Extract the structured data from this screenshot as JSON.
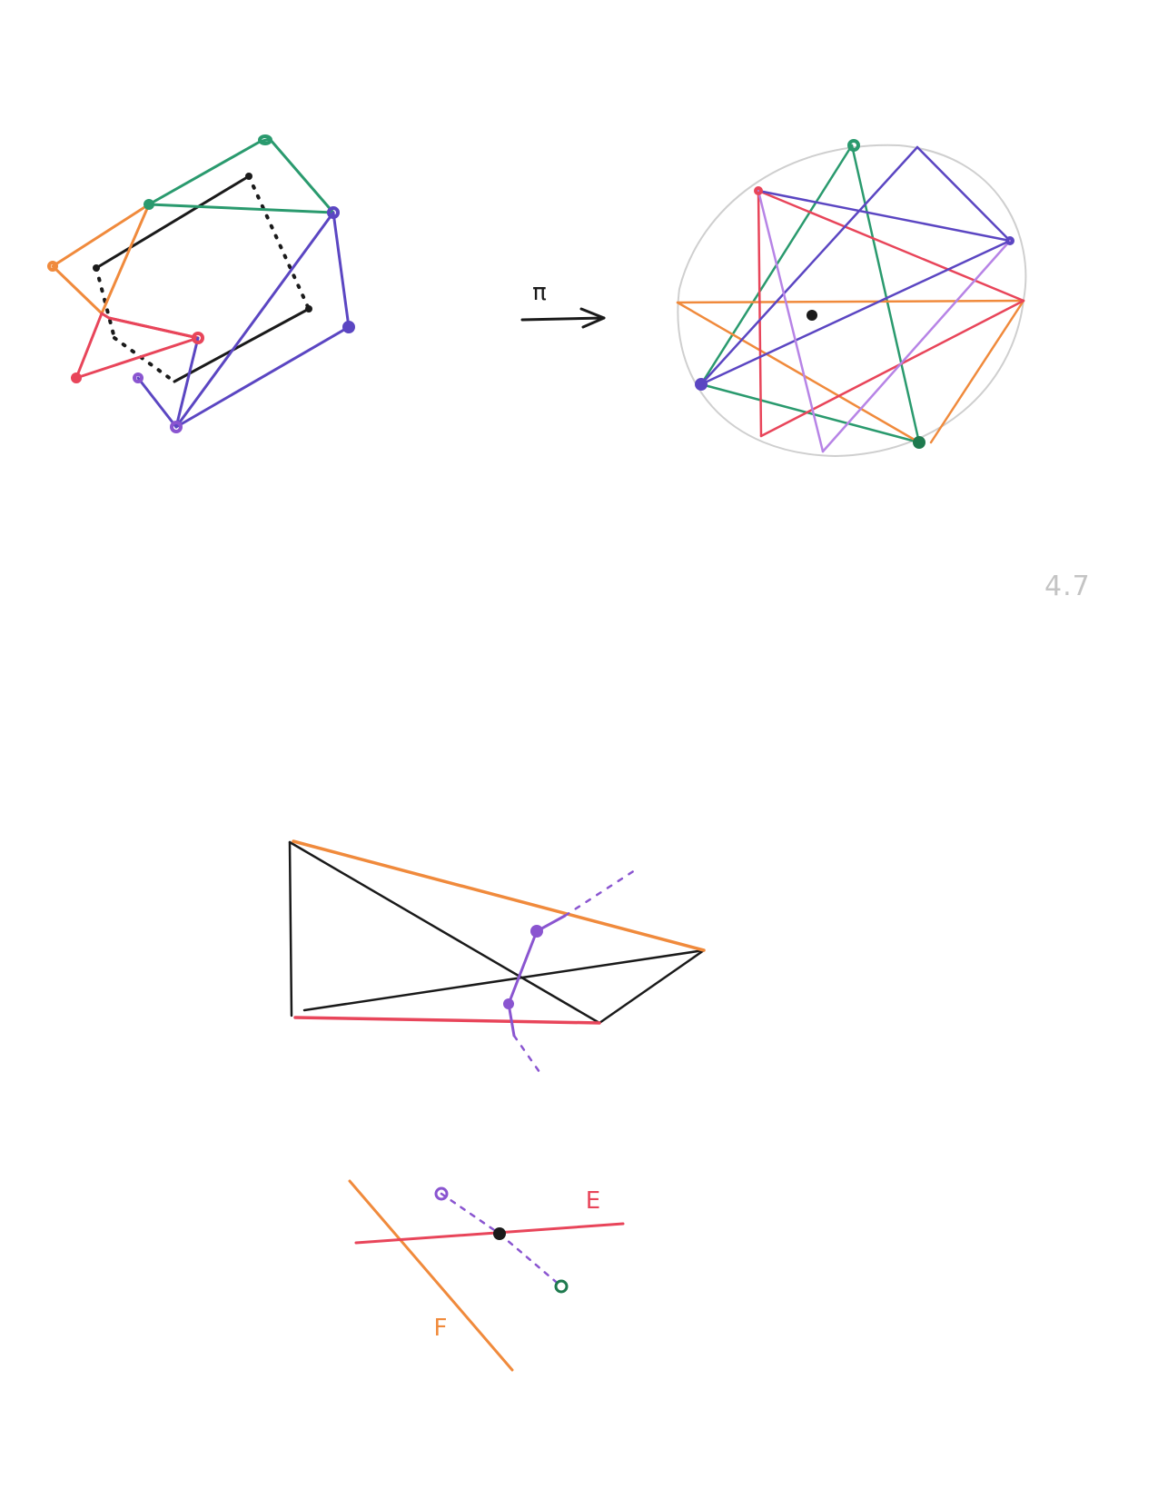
{
  "page_number": "4.7",
  "map_symbol": "π",
  "line_labels": {
    "e": "E",
    "f": "F"
  },
  "colors": {
    "ink": "#1a1a1a",
    "green": "#2a9a6e",
    "orange": "#f08a3c",
    "red": "#e8455a",
    "purple": "#8a55d0",
    "blue": "#5b46c2",
    "light_purple": "#b784e6",
    "dark_green": "#1e7a4e",
    "circle": "#cfcfcf",
    "page_number": "#c4c4c4"
  }
}
